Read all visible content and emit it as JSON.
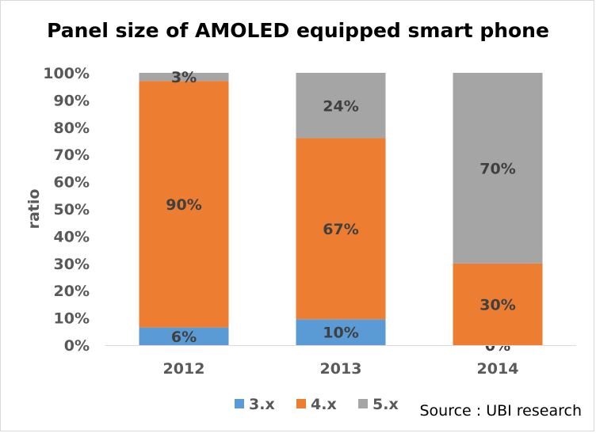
{
  "chart_data": {
    "type": "bar",
    "stacked": true,
    "title": "Panel size of AMOLED equipped smart phone",
    "ylabel": "ratio",
    "xlabel": "",
    "ylim": [
      0,
      100
    ],
    "y_ticks": [
      "0%",
      "10%",
      "20%",
      "30%",
      "40%",
      "50%",
      "60%",
      "70%",
      "80%",
      "90%",
      "100%"
    ],
    "categories": [
      "2012",
      "2013",
      "2014"
    ],
    "series": [
      {
        "name": "3.x",
        "color": "#5b9bd5",
        "values": [
          6.5,
          9.5,
          0
        ],
        "labels": [
          "6%",
          "10%",
          "0%"
        ]
      },
      {
        "name": "4.x",
        "color": "#ed7d31",
        "values": [
          90.5,
          66.5,
          30
        ],
        "labels": [
          "90%",
          "67%",
          "30%"
        ]
      },
      {
        "name": "5.x",
        "color": "#a5a5a5",
        "values": [
          3,
          24,
          70
        ],
        "labels": [
          "3%",
          "24%",
          "70%"
        ]
      }
    ],
    "legend_position": "bottom",
    "grid": false
  },
  "source": "Source : UBI research"
}
